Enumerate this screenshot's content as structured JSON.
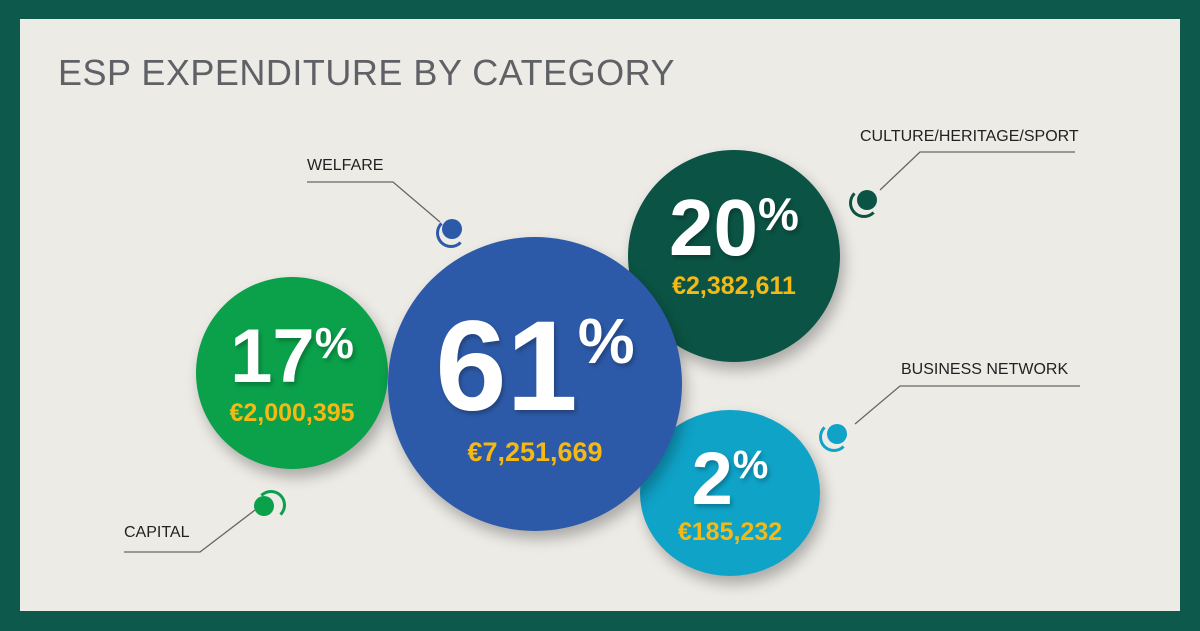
{
  "chart_data": {
    "type": "bubble",
    "title": "ESP EXPENDITURE BY CATEGORY",
    "categories": [
      "CAPITAL",
      "WELFARE",
      "CULTURE/HERITAGE/SPORT",
      "BUSINESS NETWORK"
    ],
    "series": [
      {
        "percent_labels": [
          "17",
          "61",
          "20",
          "2"
        ],
        "percent_sign": "%",
        "values": [
          17,
          61,
          20,
          2
        ],
        "amounts": [
          "€2,000,395",
          "€7,251,669",
          "€2,382,611",
          "€185,232"
        ],
        "colors": [
          "#0aa14a",
          "#2d5aa8",
          "#0b5445",
          "#0fa3c8"
        ]
      }
    ]
  }
}
